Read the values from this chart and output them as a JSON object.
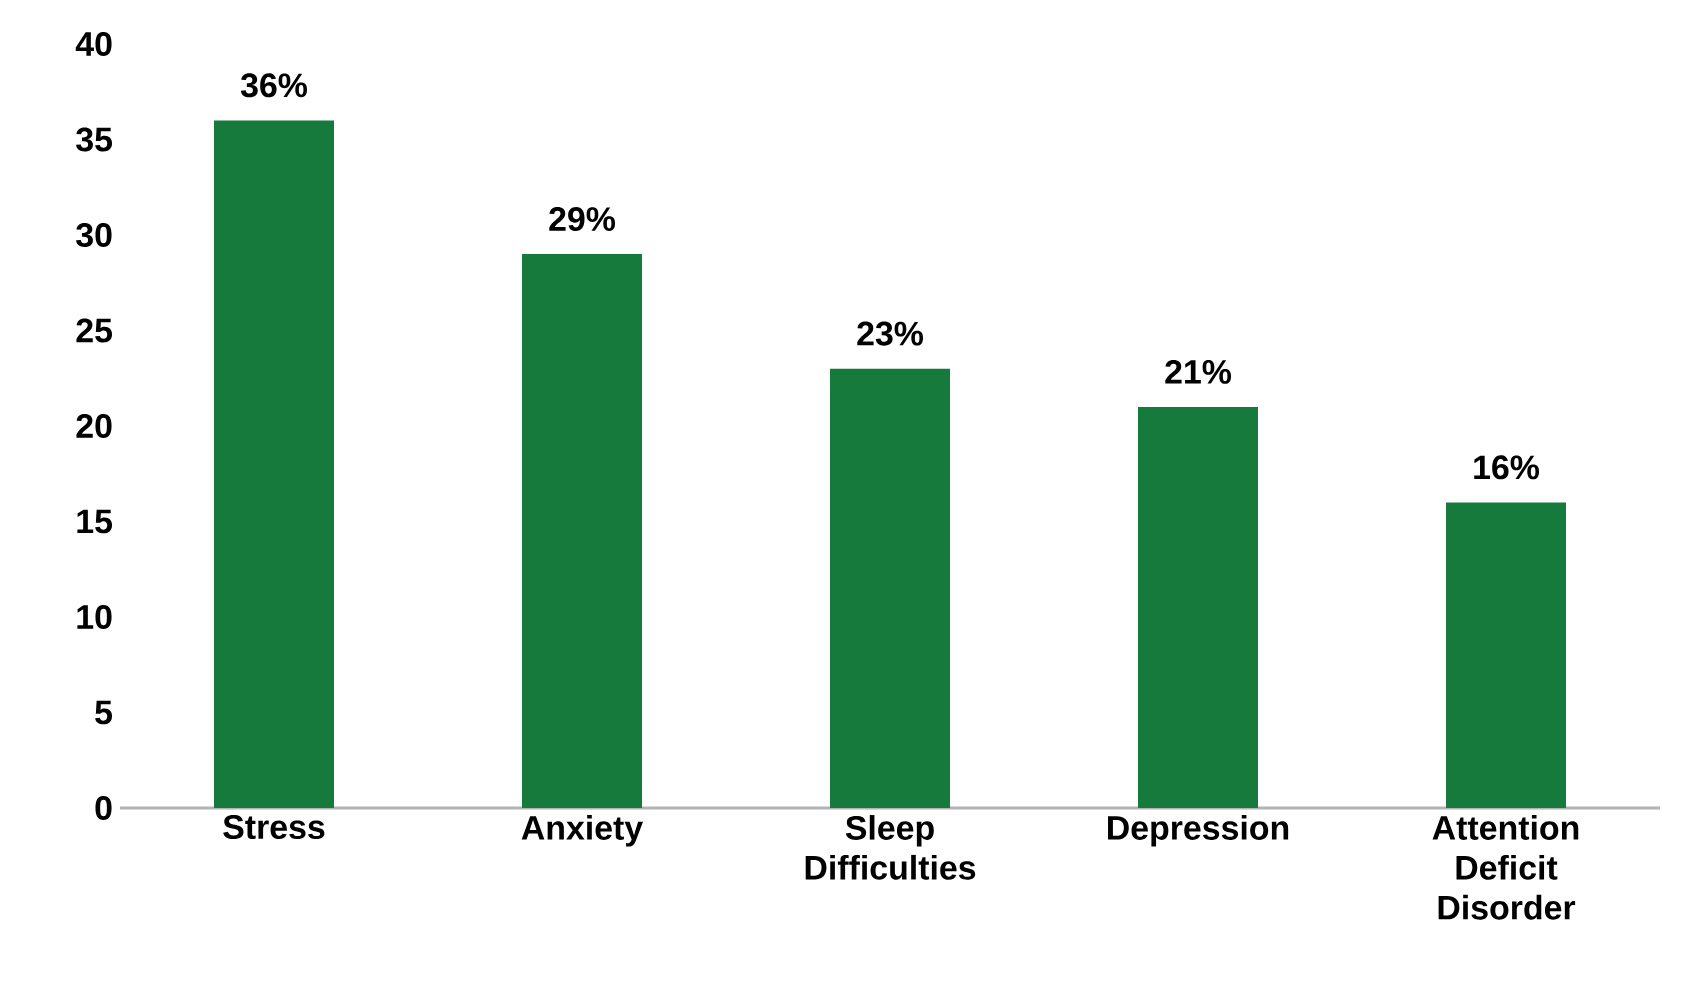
{
  "chart_data": {
    "type": "bar",
    "categories": [
      "Stress",
      "Anxiety",
      "Sleep Difficulties",
      "Depression",
      "Attention Deficit Disorder"
    ],
    "values": [
      36,
      29,
      23,
      21,
      16
    ],
    "value_labels": [
      "36%",
      "29%",
      "23%",
      "21%",
      "16%"
    ],
    "color": "#177a3d",
    "ylim": [
      0,
      40
    ],
    "yticks": [
      0,
      5,
      10,
      15,
      20,
      25,
      30,
      35,
      40
    ],
    "grid": false
  }
}
